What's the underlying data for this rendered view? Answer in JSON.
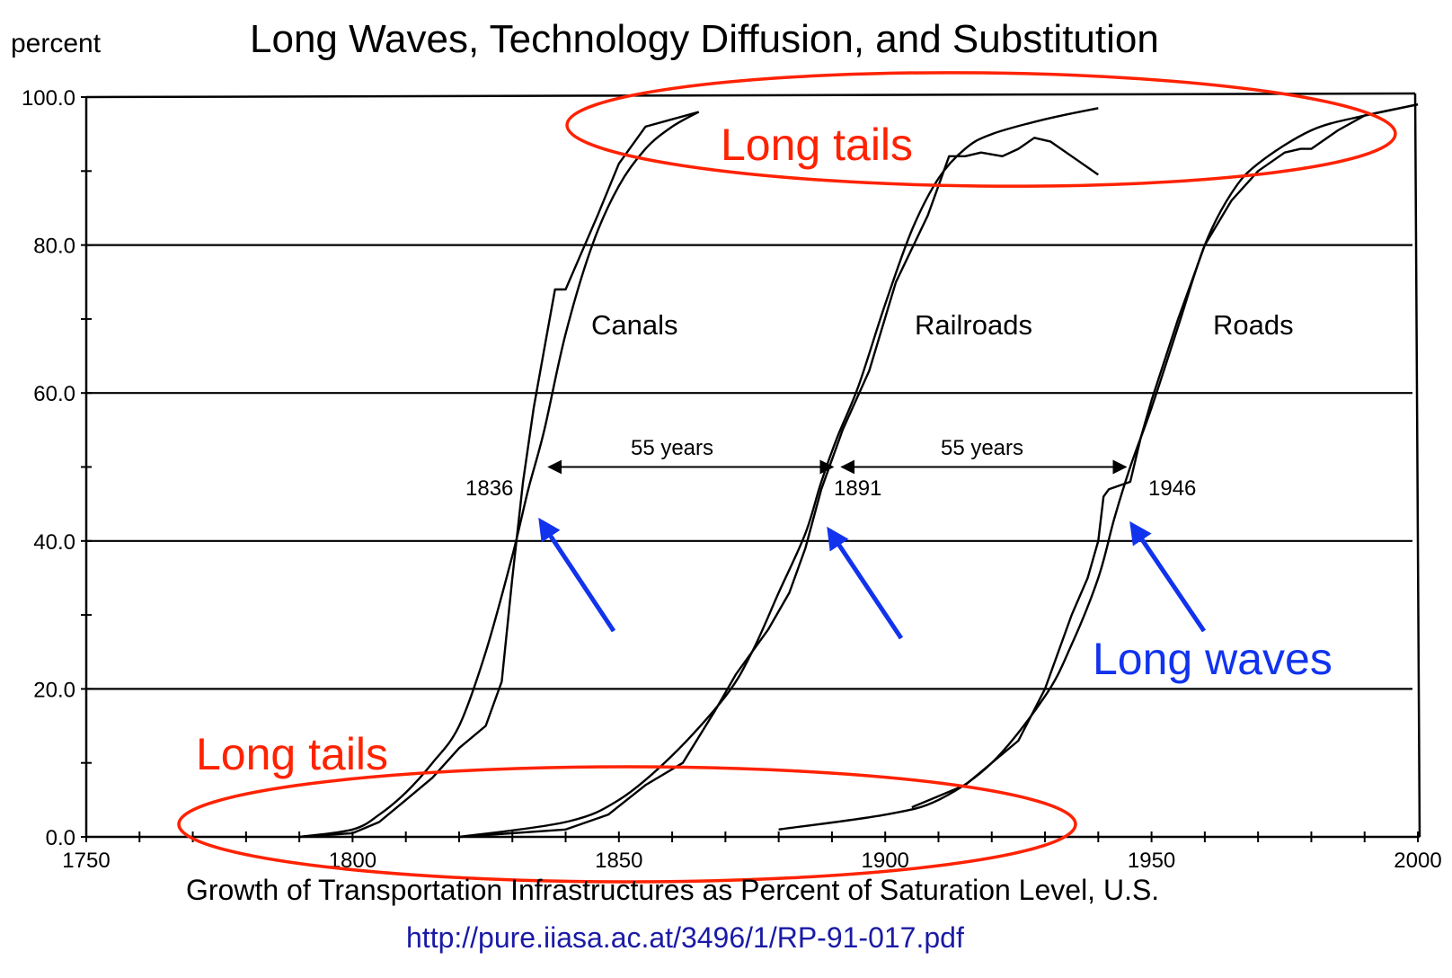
{
  "chart_data": {
    "type": "line",
    "title": "Long Waves, Technology Diffusion, and Substitution",
    "ylabel": "percent",
    "xlabel": "Growth of Transportation Infrastructures as Percent of Saturation Level, U.S.",
    "source_url": "http://pure.iiasa.ac.at/3496/1/RP-91-017.pdf",
    "xlim": [
      1750,
      2000
    ],
    "ylim": [
      0,
      100
    ],
    "x_ticks": [
      1750,
      1800,
      1850,
      1900,
      1950,
      2000
    ],
    "y_ticks": [
      0,
      20,
      40,
      60,
      80,
      100
    ],
    "y_tick_labels": [
      "0.0",
      "20.0",
      "40.0",
      "60.0",
      "80.0",
      "100.0"
    ],
    "grid": "horizontal",
    "series": [
      {
        "name": "Canals",
        "fitted": {
          "midpoint": 1836,
          "x": [
            1790,
            1800,
            1805,
            1810,
            1815,
            1820,
            1825,
            1830,
            1833,
            1836,
            1840,
            1845,
            1850,
            1855,
            1860,
            1865
          ],
          "y": [
            0,
            1,
            3,
            6,
            10,
            15,
            25,
            38,
            47,
            55,
            68,
            80,
            88,
            93,
            96,
            98
          ]
        },
        "actual": {
          "x": [
            1790,
            1800,
            1805,
            1810,
            1815,
            1820,
            1825,
            1828,
            1830,
            1832,
            1834,
            1836,
            1838,
            1840,
            1843,
            1846,
            1850,
            1855,
            1860,
            1865
          ],
          "y": [
            0,
            0.5,
            2,
            5,
            8,
            12,
            15,
            21,
            35,
            48,
            58,
            66,
            74,
            74,
            79,
            84,
            91,
            96,
            97,
            98
          ]
        }
      },
      {
        "name": "Railroads",
        "fitted": {
          "midpoint": 1891,
          "x": [
            1820,
            1840,
            1850,
            1860,
            1870,
            1875,
            1880,
            1885,
            1888,
            1891,
            1895,
            1900,
            1905,
            1910,
            1915,
            1920,
            1930,
            1940
          ],
          "y": [
            0,
            2,
            5,
            11,
            19,
            25,
            33,
            41,
            48,
            54,
            61,
            72,
            82,
            89,
            93,
            95,
            97,
            98.5
          ]
        },
        "actual": {
          "x": [
            1820,
            1840,
            1848,
            1855,
            1862,
            1868,
            1872,
            1878,
            1882,
            1885,
            1888,
            1892,
            1897,
            1902,
            1908,
            1912,
            1915,
            1918,
            1922,
            1925,
            1928,
            1931,
            1935,
            1940
          ],
          "y": [
            0,
            1,
            3,
            7,
            10,
            17,
            22,
            28,
            33,
            39,
            47,
            55,
            63,
            75,
            84,
            92,
            92,
            92.5,
            92,
            93,
            94.5,
            94,
            92,
            89.5
          ]
        }
      },
      {
        "name": "Roads",
        "fitted": {
          "midpoint": 1946,
          "x": [
            1880,
            1900,
            1910,
            1920,
            1930,
            1935,
            1940,
            1943,
            1946,
            1950,
            1955,
            1960,
            1965,
            1970,
            1980,
            1990,
            2000
          ],
          "y": [
            1,
            3,
            5,
            10,
            19,
            26,
            35,
            43,
            50,
            58,
            69,
            80,
            87,
            91,
            95.5,
            97.5,
            99
          ]
        },
        "actual": {
          "x": [
            1905,
            1915,
            1925,
            1930,
            1935,
            1938,
            1940,
            1941,
            1942,
            1944,
            1946,
            1948,
            1950,
            1955,
            1960,
            1965,
            1970,
            1975,
            1978,
            1980,
            1985,
            1990,
            2000
          ],
          "y": [
            4,
            7,
            13,
            20,
            30,
            35,
            40,
            46,
            47,
            47.5,
            48,
            54,
            59,
            70,
            80,
            86,
            90,
            92.5,
            93,
            93,
            95.5,
            97.5,
            99
          ]
        }
      }
    ],
    "annotations": {
      "span1_label": "55 years",
      "span2_label": "55 years",
      "year1": "1836",
      "year2": "1891",
      "year3": "1946",
      "span1_from": 1836,
      "span1_to": 1891,
      "span2_from": 1891,
      "span2_to": 1946,
      "span_level": 50,
      "long_tails_top": "Long tails",
      "long_tails_bottom": "Long tails",
      "long_waves": "Long waves",
      "colors": {
        "red": "#ff2200",
        "blue": "#1133ee",
        "url": "#1a1aa6"
      }
    }
  }
}
